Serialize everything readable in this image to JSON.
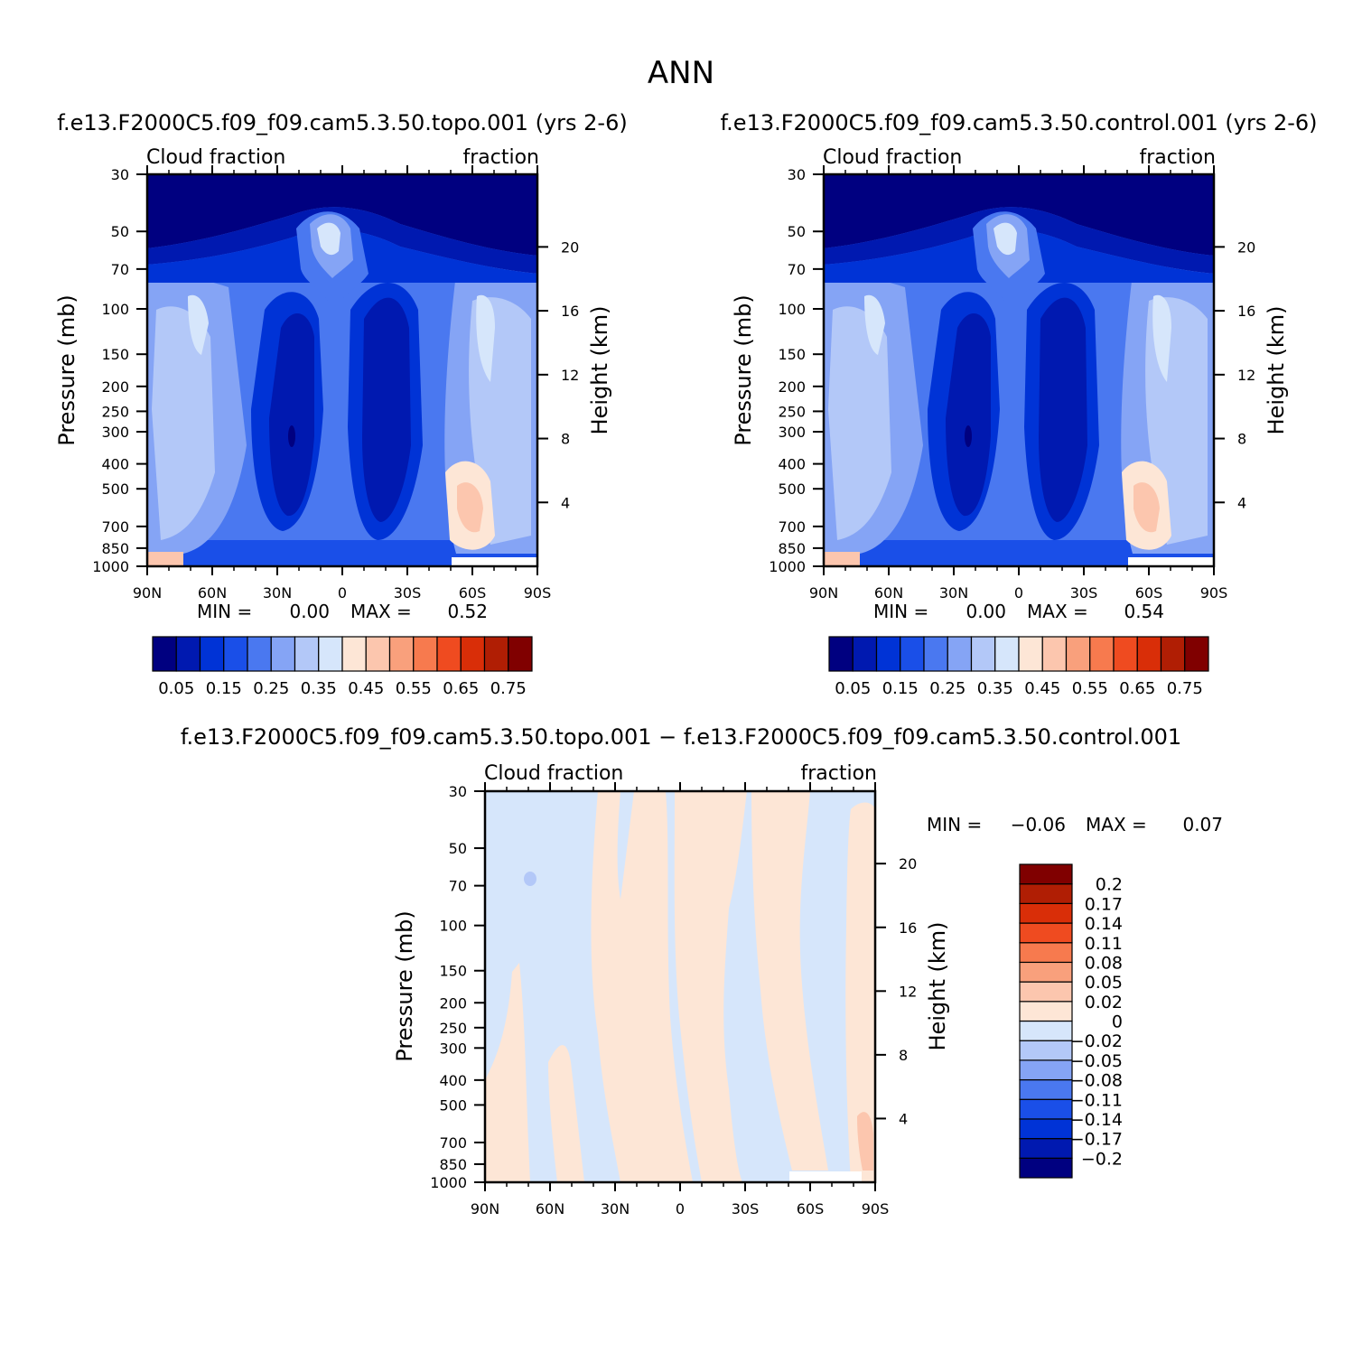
{
  "figure_title": "ANN",
  "panels": [
    {
      "title": "f.e13.F2000C5.f09_f09.cam5.3.50.topo.001 (yrs 2-6)",
      "left_label": "Cloud fraction",
      "right_label": "fraction",
      "stats": {
        "min_label": "MIN =",
        "min": "0.00",
        "max_label": "MAX =",
        "max": "0.52"
      }
    },
    {
      "title": "f.e13.F2000C5.f09_f09.cam5.3.50.control.001 (yrs 2-6)",
      "left_label": "Cloud fraction",
      "right_label": "fraction",
      "stats": {
        "min_label": "MIN =",
        "min": "0.00",
        "max_label": "MAX =",
        "max": "0.54"
      }
    },
    {
      "title": "f.e13.F2000C5.f09_f09.cam5.3.50.topo.001 − f.e13.F2000C5.f09_f09.cam5.3.50.control.001",
      "left_label": "Cloud fraction",
      "right_label": "fraction",
      "stats": {
        "min_label": "MIN =",
        "min": "−0.06",
        "max_label": "MAX =",
        "max": "0.07"
      }
    }
  ],
  "colorbars": {
    "abs": {
      "colors": [
        "#000080",
        "#0019b0",
        "#0033d6",
        "#1a4fe8",
        "#4a78f0",
        "#85a4f5",
        "#b3c8f8",
        "#d6e6fb",
        "#fde6d6",
        "#fcc6ae",
        "#f9a07c",
        "#f77a4e",
        "#ef4b20",
        "#d92e08",
        "#b01e04",
        "#800000"
      ],
      "labels": [
        "0.05",
        "0.15",
        "0.25",
        "0.35",
        "0.45",
        "0.55",
        "0.65",
        "0.75"
      ]
    },
    "diff": {
      "colors": [
        "#000080",
        "#0019b0",
        "#0033d6",
        "#1a4fe8",
        "#4a78f0",
        "#85a4f5",
        "#b3c8f8",
        "#d6e6fb",
        "#fde6d6",
        "#fcc6ae",
        "#f9a07c",
        "#f77a4e",
        "#ef4b20",
        "#d92e08",
        "#b01e04",
        "#800000"
      ],
      "labels": [
        "−0.2",
        "−0.17",
        "−0.14",
        "−0.11",
        "−0.08",
        "−0.05",
        "−0.02",
        "0",
        "0.02",
        "0.05",
        "0.08",
        "0.11",
        "0.14",
        "0.17",
        "0.2"
      ]
    }
  },
  "chart_data": [
    {
      "type": "heatmap",
      "title": "f.e13.F2000C5.f09_f09.cam5.3.50.topo.001 (yrs 2-6)",
      "xlabel": "",
      "ylabel": "Pressure (mb)",
      "y2label": "Height (km)",
      "x_ticks": [
        "90N",
        "60N",
        "30N",
        "0",
        "30S",
        "60S",
        "90S"
      ],
      "y_ticks": [
        30,
        50,
        70,
        100,
        150,
        200,
        250,
        300,
        400,
        500,
        700,
        850,
        1000
      ],
      "y2_ticks": [
        20,
        16,
        12,
        8,
        4
      ],
      "ylim": [
        1000,
        30
      ],
      "y_scale": "log",
      "min": 0.0,
      "max": 0.52
    },
    {
      "type": "heatmap",
      "title": "f.e13.F2000C5.f09_f09.cam5.3.50.control.001 (yrs 2-6)",
      "xlabel": "",
      "ylabel": "Pressure (mb)",
      "y2label": "Height (km)",
      "x_ticks": [
        "90N",
        "60N",
        "30N",
        "0",
        "30S",
        "60S",
        "90S"
      ],
      "y_ticks": [
        30,
        50,
        70,
        100,
        150,
        200,
        250,
        300,
        400,
        500,
        700,
        850,
        1000
      ],
      "y2_ticks": [
        20,
        16,
        12,
        8,
        4
      ],
      "ylim": [
        1000,
        30
      ],
      "y_scale": "log",
      "min": 0.0,
      "max": 0.54
    },
    {
      "type": "heatmap",
      "title": "f.e13.F2000C5.f09_f09.cam5.3.50.topo.001 − f.e13.F2000C5.f09_f09.cam5.3.50.control.001",
      "xlabel": "",
      "ylabel": "Pressure (mb)",
      "y2label": "Height (km)",
      "x_ticks": [
        "90N",
        "60N",
        "30N",
        "0",
        "30S",
        "60S",
        "90S"
      ],
      "y_ticks": [
        30,
        50,
        70,
        100,
        150,
        200,
        250,
        300,
        400,
        500,
        700,
        850,
        1000
      ],
      "y2_ticks": [
        20,
        16,
        12,
        8,
        4
      ],
      "ylim": [
        1000,
        30
      ],
      "y_scale": "log",
      "min": -0.06,
      "max": 0.07
    }
  ]
}
